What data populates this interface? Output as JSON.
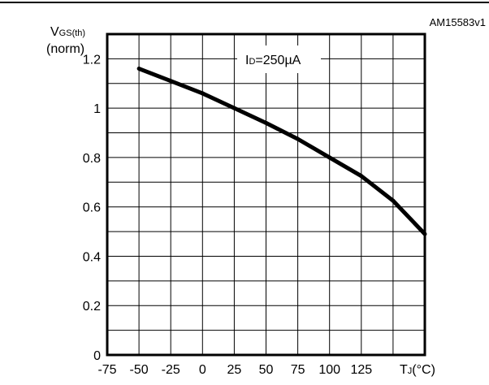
{
  "figure_id": "AM15583v1",
  "annotation": {
    "main": "I",
    "sub": "D",
    "rest": "=250µA"
  },
  "chart_data": {
    "type": "line",
    "title": "",
    "ylabel": {
      "main": "V",
      "sub": "GS(th)",
      "line2": "(norm)"
    },
    "xlabel": {
      "main": "T",
      "sub": "J",
      "rest": "(°C)"
    },
    "xlim": [
      -75,
      175
    ],
    "ylim": [
      0,
      1.3
    ],
    "x_ticks": [
      -75,
      -50,
      -25,
      0,
      25,
      50,
      75,
      100,
      125
    ],
    "x_tick_labels": [
      "-75",
      "-50",
      "-25",
      "0",
      "25",
      "50",
      "75",
      "100",
      "125"
    ],
    "y_ticks": [
      0,
      0.2,
      0.4,
      0.6,
      0.8,
      1.0,
      1.2
    ],
    "y_tick_labels": [
      "0",
      "0.2",
      "0.4",
      "0.6",
      "0.8",
      "1",
      "1.2"
    ],
    "grid": true,
    "series": [
      {
        "x": [
          -50,
          -25,
          0,
          25,
          50,
          75,
          100,
          125,
          150,
          175
        ],
        "values": [
          1.16,
          1.11,
          1.06,
          1.0,
          0.94,
          0.875,
          0.8,
          0.725,
          0.625,
          0.49
        ]
      }
    ]
  }
}
